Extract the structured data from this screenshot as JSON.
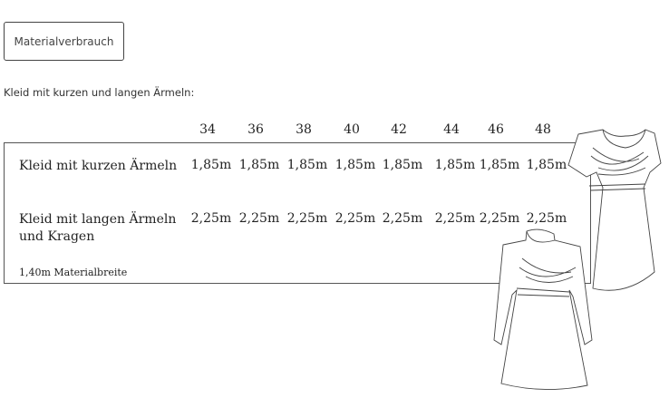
{
  "button": {
    "label": "Materialverbrauch"
  },
  "intro": "Kleid mit kurzen und langen Ärmeln:",
  "table": {
    "sizes": [
      "34",
      "36",
      "38",
      "40",
      "42",
      "44",
      "46",
      "48"
    ],
    "rows": [
      {
        "label": "Kleid mit kurzen Ärmeln",
        "values": [
          "1,85m",
          "1,85m",
          "1,85m",
          "1,85m",
          "1,85m",
          "1,85m",
          "1,85m",
          "1,85m"
        ]
      },
      {
        "label_line1": "Kleid mit langen Ärmeln",
        "label_line2": "und Kragen",
        "values": [
          "2,25m",
          "2,25m",
          "2,25m",
          "2,25m",
          "2,25m",
          "2,25m",
          "2,25m",
          "2,25m"
        ]
      }
    ],
    "footnote": "1,40m Materialbreite"
  },
  "images": [
    "short-sleeve-dress-illustration",
    "long-sleeve-dress-illustration"
  ]
}
